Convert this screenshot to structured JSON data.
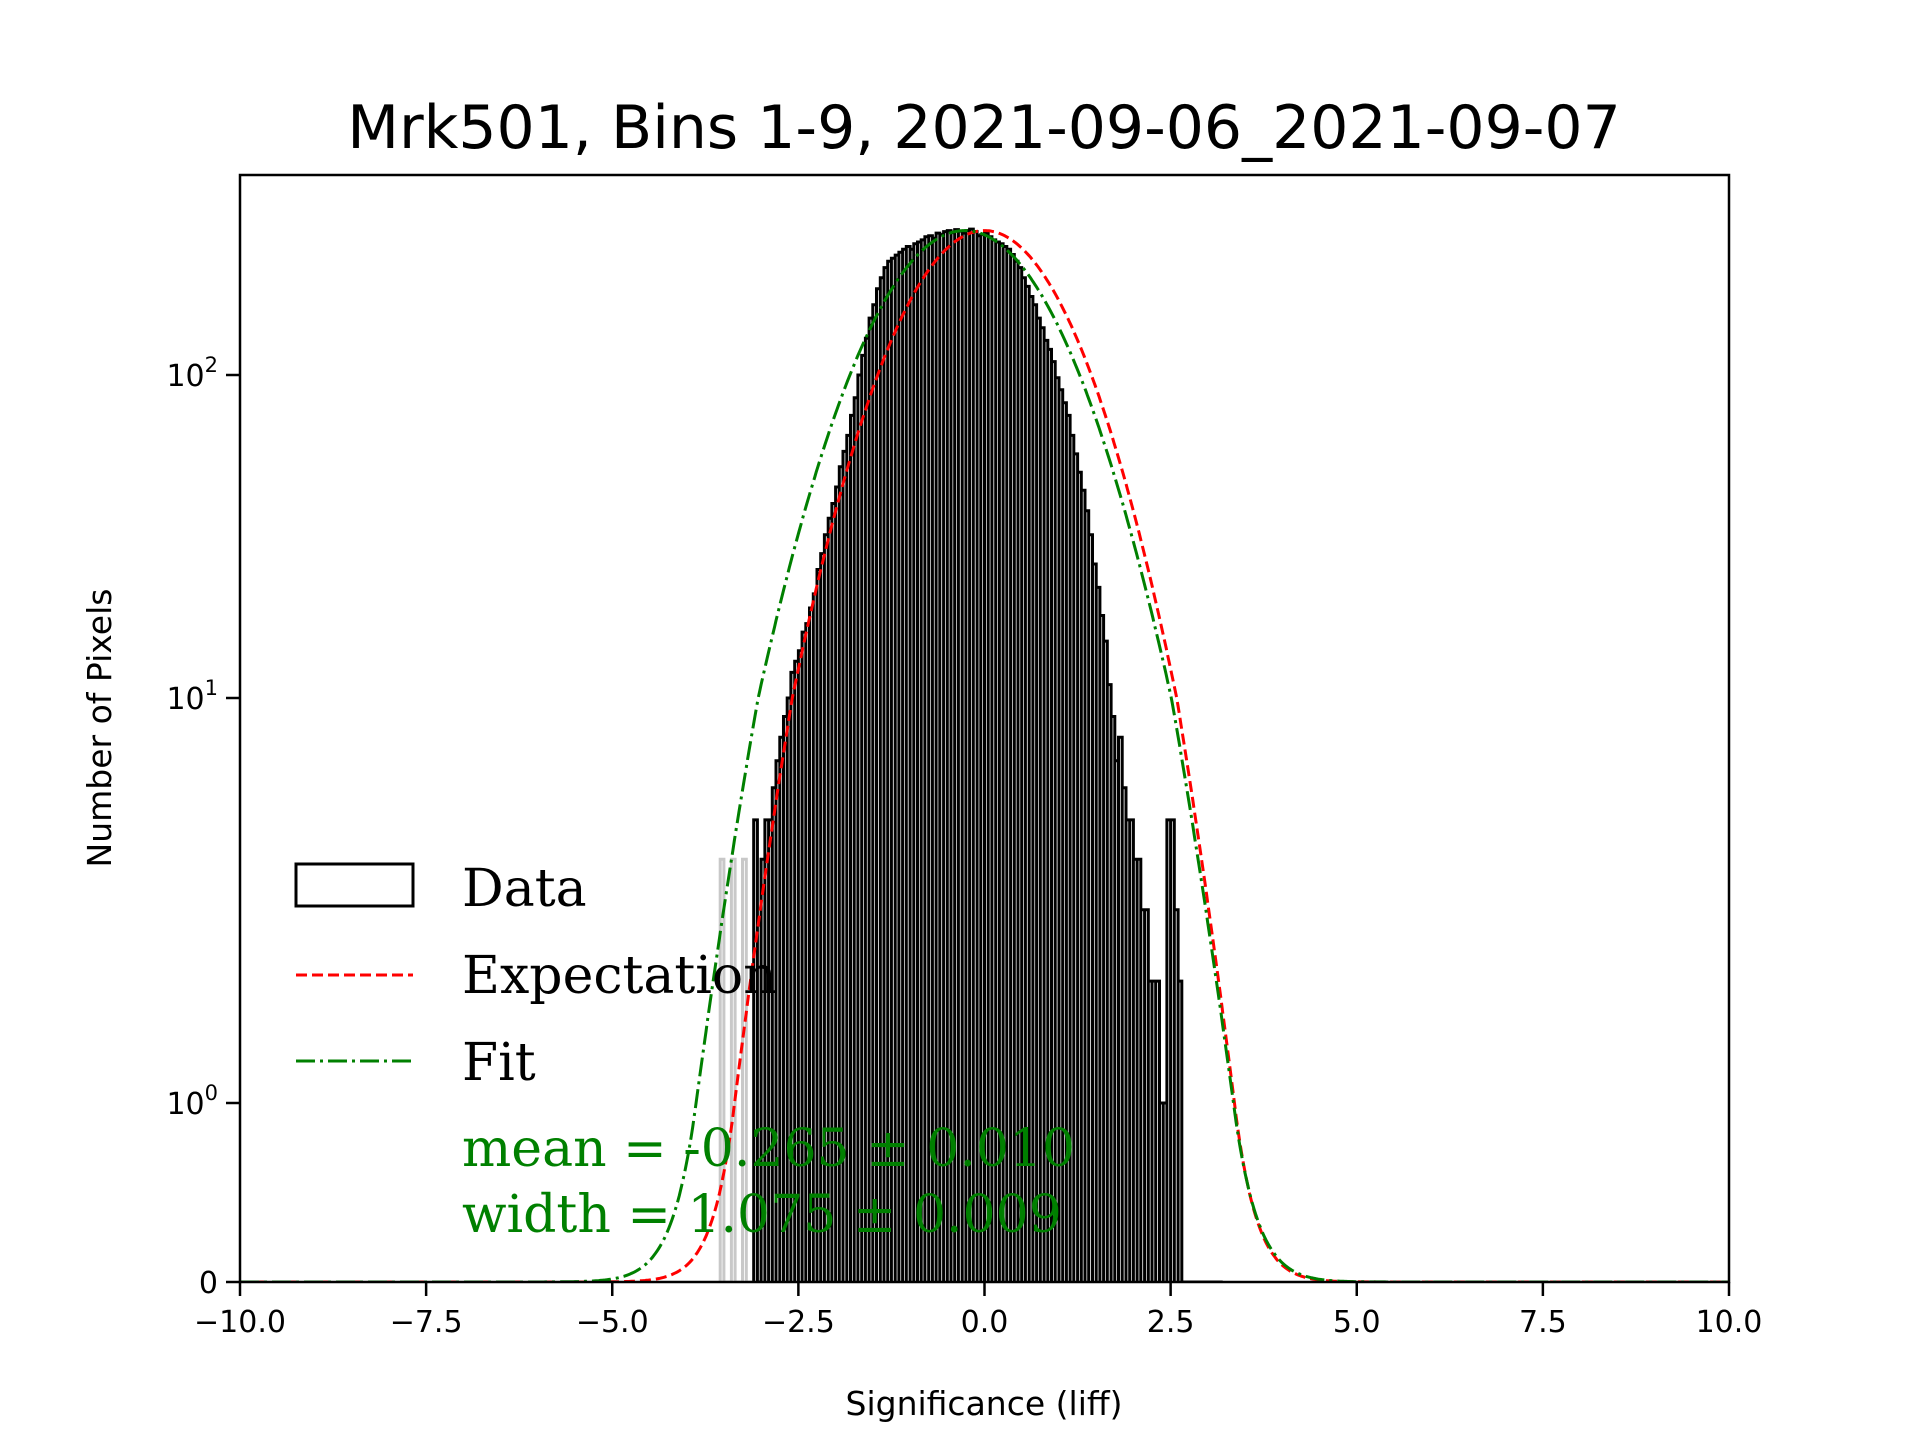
{
  "chart_data": {
    "type": "histogram",
    "title": "Mrk501, Bins 1-9, 2021-09-06_2021-09-07",
    "xlabel": "Significance (liff)",
    "ylabel": "Number of Pixels",
    "xlim": [
      -10.0,
      10.0
    ],
    "yscale": "symlog",
    "ylim": [
      0,
      300
    ],
    "xticks": [
      "−10.0",
      "−7.5",
      "−5.0",
      "−2.5",
      "0.0",
      "2.5",
      "5.0",
      "7.5",
      "10.0"
    ],
    "xtick_values": [
      -10,
      -7.5,
      -5,
      -2.5,
      0,
      2.5,
      5,
      7.5,
      10
    ],
    "yticks": [
      {
        "value": 0,
        "base": "0",
        "exp": ""
      },
      {
        "value": 1,
        "base": "10",
        "exp": "0"
      },
      {
        "value": 10,
        "base": "10",
        "exp": "1"
      },
      {
        "value": 100,
        "base": "10",
        "exp": "2"
      }
    ],
    "legend": {
      "placement": "lower-left",
      "entries": [
        {
          "label": "Data",
          "style": "step",
          "color": "#000000"
        },
        {
          "label": "Expectation",
          "style": "dashed",
          "color": "#ff0000"
        },
        {
          "label": "Fit",
          "style": "dashdot",
          "color": "#008000"
        }
      ]
    },
    "annotations": {
      "mean": "mean = -0.265 ± 0.010",
      "width": "width = 1.075 ± 0.009",
      "color": "#008000"
    },
    "series": [
      {
        "name": "Expectation",
        "kind": "gaussian",
        "amplitude": 280,
        "mean": 0.0,
        "sigma": 1.0,
        "color": "#ff0000"
      },
      {
        "name": "Fit",
        "kind": "gaussian",
        "amplitude": 280,
        "mean": -0.265,
        "sigma": 1.075,
        "color": "#008000"
      },
      {
        "name": "Data",
        "kind": "histogram",
        "color": "#000000",
        "bin_edges_range": [
          -3.55,
          3.15
        ],
        "bin_width": 0.05,
        "counts": [
          4,
          0,
          0,
          4,
          0,
          0,
          4,
          0,
          0,
          5,
          0,
          4,
          5,
          5,
          6,
          7,
          8,
          9,
          10,
          12,
          13,
          14,
          16,
          17,
          19,
          21,
          25,
          28,
          32,
          36,
          40,
          45,
          52,
          58,
          65,
          75,
          85,
          100,
          115,
          130,
          150,
          165,
          185,
          200,
          215,
          225,
          230,
          235,
          240,
          245,
          250,
          245,
          255,
          258,
          262,
          268,
          270,
          265,
          275,
          272,
          278,
          280,
          276,
          282,
          279,
          275,
          280,
          283,
          278,
          270,
          272,
          275,
          268,
          262,
          258,
          255,
          250,
          245,
          236,
          225,
          215,
          200,
          188,
          175,
          165,
          150,
          140,
          128,
          120,
          110,
          98,
          90,
          82,
          75,
          65,
          57,
          50,
          44,
          38,
          32,
          26,
          22,
          18,
          15,
          11,
          9,
          7,
          8,
          6,
          5,
          5,
          4,
          4,
          3,
          3,
          2,
          2,
          2,
          1,
          1,
          5,
          5,
          3,
          2,
          0,
          0,
          0,
          0,
          0,
          0,
          0,
          0,
          0,
          0,
          0
        ]
      }
    ]
  }
}
